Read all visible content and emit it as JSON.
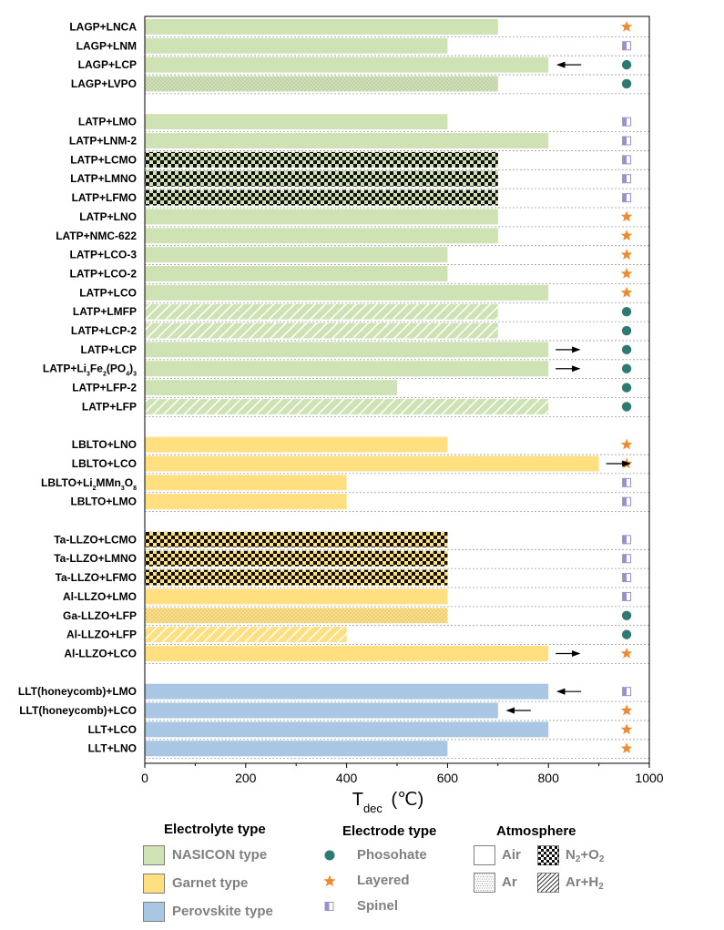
{
  "chart_data": {
    "type": "bar",
    "orientation": "horizontal",
    "xlabel_main": "T",
    "xlabel_sub": "dec",
    "xlabel_unit": "(℃)",
    "xlim": [
      0,
      1000
    ],
    "xticks": [
      "0",
      "200",
      "400",
      "600",
      "800",
      "1000"
    ],
    "groups": [
      {
        "bars": [
          {
            "label": "LAGP+LNCA",
            "value": 700,
            "electrolyte": "nasicon",
            "atmosphere": "air",
            "electrode": "layered",
            "arrow": null
          },
          {
            "label": "LAGP+LNM",
            "value": 600,
            "electrolyte": "nasicon",
            "atmosphere": "air",
            "electrode": "spinel",
            "arrow": null
          },
          {
            "label": "LAGP+LCP",
            "value": 800,
            "electrolyte": "nasicon",
            "atmosphere": "air",
            "electrode": "phosphate",
            "arrow": "left"
          },
          {
            "label": "LAGP+LVPO",
            "value": 700,
            "electrolyte": "nasicon",
            "atmosphere": "ar",
            "electrode": "phosphate",
            "arrow": null
          }
        ]
      },
      {
        "bars": [
          {
            "label": "LATP+LMO",
            "value": 600,
            "electrolyte": "nasicon",
            "atmosphere": "air",
            "electrode": "spinel",
            "arrow": null
          },
          {
            "label": "LATP+LNM-2",
            "value": 800,
            "electrolyte": "nasicon",
            "atmosphere": "air",
            "electrode": "spinel",
            "arrow": null
          },
          {
            "label": "LATP+LCMO",
            "value": 700,
            "electrolyte": "nasicon",
            "atmosphere": "n2o2",
            "electrode": "spinel",
            "arrow": null
          },
          {
            "label": "LATP+LMNO",
            "value": 700,
            "electrolyte": "nasicon",
            "atmosphere": "n2o2",
            "electrode": "spinel",
            "arrow": null
          },
          {
            "label": "LATP+LFMO",
            "value": 700,
            "electrolyte": "nasicon",
            "atmosphere": "n2o2",
            "electrode": "spinel",
            "arrow": null
          },
          {
            "label": "LATP+LNO",
            "value": 700,
            "electrolyte": "nasicon",
            "atmosphere": "air",
            "electrode": "layered",
            "arrow": null
          },
          {
            "label": "LATP+NMC-622",
            "value": 700,
            "electrolyte": "nasicon",
            "atmosphere": "air",
            "electrode": "layered",
            "arrow": null
          },
          {
            "label": "LATP+LCO-3",
            "value": 600,
            "electrolyte": "nasicon",
            "atmosphere": "air",
            "electrode": "layered",
            "arrow": null
          },
          {
            "label": "LATP+LCO-2",
            "value": 600,
            "electrolyte": "nasicon",
            "atmosphere": "air",
            "electrode": "layered",
            "arrow": null
          },
          {
            "label": "LATP+LCO",
            "value": 800,
            "electrolyte": "nasicon",
            "atmosphere": "air",
            "electrode": "layered",
            "arrow": null
          },
          {
            "label": "LATP+LMFP",
            "value": 700,
            "electrolyte": "nasicon",
            "atmosphere": "arh2",
            "electrode": "phosphate",
            "arrow": null
          },
          {
            "label": "LATP+LCP-2",
            "value": 700,
            "electrolyte": "nasicon",
            "atmosphere": "arh2",
            "electrode": "phosphate",
            "arrow": null
          },
          {
            "label": "LATP+LCP",
            "value": 800,
            "electrolyte": "nasicon",
            "atmosphere": "air",
            "electrode": "phosphate",
            "arrow": "right"
          },
          {
            "label": "LATP+Li3Fe2(PO4)3",
            "label_parts": [
              [
                "LATP+Li",
                ""
              ],
              [
                "3",
                "sub"
              ],
              [
                "Fe",
                ""
              ],
              [
                "2",
                "sub"
              ],
              [
                "(PO",
                ""
              ],
              [
                "4",
                "sub"
              ],
              [
                ")",
                ""
              ],
              [
                "3",
                "sub"
              ]
            ],
            "value": 800,
            "electrolyte": "nasicon",
            "atmosphere": "air",
            "electrode": "phosphate",
            "arrow": "right"
          },
          {
            "label": "LATP+LFP-2",
            "value": 500,
            "electrolyte": "nasicon",
            "atmosphere": "air",
            "electrode": "phosphate",
            "arrow": null
          },
          {
            "label": "LATP+LFP",
            "value": 800,
            "electrolyte": "nasicon",
            "atmosphere": "arh2",
            "electrode": "phosphate",
            "arrow": null
          }
        ]
      },
      {
        "bars": [
          {
            "label": "LBLTO+LNO",
            "value": 600,
            "electrolyte": "garnet",
            "atmosphere": "air",
            "electrode": "layered",
            "arrow": null
          },
          {
            "label": "LBLTO+LCO",
            "value": 900,
            "electrolyte": "garnet",
            "atmosphere": "air",
            "electrode": "layered",
            "arrow": "right"
          },
          {
            "label": "LBLTO+Li2MMn3O8",
            "label_parts": [
              [
                "LBLTO+Li",
                ""
              ],
              [
                "2",
                "sub"
              ],
              [
                "MMn",
                ""
              ],
              [
                "3",
                "sub"
              ],
              [
                "O",
                ""
              ],
              [
                "8",
                "sub"
              ]
            ],
            "value": 400,
            "electrolyte": "garnet",
            "atmosphere": "air",
            "electrode": "spinel",
            "arrow": null
          },
          {
            "label": "LBLTO+LMO",
            "value": 400,
            "electrolyte": "garnet",
            "atmosphere": "air",
            "electrode": "spinel",
            "arrow": null
          }
        ]
      },
      {
        "bars": [
          {
            "label": "Ta-LLZO+LCMO",
            "value": 600,
            "electrolyte": "garnet",
            "atmosphere": "n2o2",
            "electrode": "spinel",
            "arrow": null
          },
          {
            "label": "Ta-LLZO+LMNO",
            "value": 600,
            "electrolyte": "garnet",
            "atmosphere": "n2o2",
            "electrode": "spinel",
            "arrow": null
          },
          {
            "label": "Ta-LLZO+LFMO",
            "value": 600,
            "electrolyte": "garnet",
            "atmosphere": "n2o2",
            "electrode": "spinel",
            "arrow": null
          },
          {
            "label": "Al-LLZO+LMO",
            "value": 600,
            "electrolyte": "garnet",
            "atmosphere": "air",
            "electrode": "spinel",
            "arrow": null
          },
          {
            "label": "Ga-LLZO+LFP",
            "value": 600,
            "electrolyte": "garnet",
            "atmosphere": "ar",
            "electrode": "phosphate",
            "arrow": null
          },
          {
            "label": "Al-LLZO+LFP",
            "value": 400,
            "electrolyte": "garnet",
            "atmosphere": "arh2",
            "electrode": "phosphate",
            "arrow": null
          },
          {
            "label": "Al-LLZO+LCO",
            "value": 800,
            "electrolyte": "garnet",
            "atmosphere": "air",
            "electrode": "layered",
            "arrow": "right"
          }
        ]
      },
      {
        "bars": [
          {
            "label": "LLT(honeycomb)+LMO",
            "value": 800,
            "electrolyte": "perovskite",
            "atmosphere": "air",
            "electrode": "spinel",
            "arrow": "left"
          },
          {
            "label": "LLT(honeycomb)+LCO",
            "value": 700,
            "electrolyte": "perovskite",
            "atmosphere": "air",
            "electrode": "layered",
            "arrow": "left"
          },
          {
            "label": "LLT+LCO",
            "value": 800,
            "electrolyte": "perovskite",
            "atmosphere": "air",
            "electrode": "layered",
            "arrow": null
          },
          {
            "label": "LLT+LNO",
            "value": 600,
            "electrolyte": "perovskite",
            "atmosphere": "air",
            "electrode": "layered",
            "arrow": null
          }
        ]
      }
    ],
    "colors": {
      "nasicon": "#cfe2b4",
      "garnet": "#ffdf7f",
      "perovskite": "#a9c6e4",
      "phosphate": "#2e7a72",
      "layered": "#f08a2c",
      "spinel": "#9a90d0"
    }
  },
  "legend": {
    "electrolyte_title": "Electrolyte type",
    "electrolyte_items": [
      {
        "key": "nasicon",
        "label": "NASICON type"
      },
      {
        "key": "garnet",
        "label": "Garnet type"
      },
      {
        "key": "perovskite",
        "label": "Perovskite type"
      }
    ],
    "electrode_title": "Electrode type",
    "electrode_items": [
      {
        "key": "phosphate",
        "label": "Phosohate",
        "icon": "circle-icon"
      },
      {
        "key": "layered",
        "label": "Layered",
        "icon": "star-icon"
      },
      {
        "key": "spinel",
        "label": "Spinel",
        "icon": "half-square-icon"
      }
    ],
    "atmosphere_title": "Atmosphere",
    "atmosphere_items": [
      {
        "key": "air",
        "label": "Air"
      },
      {
        "key": "n2o2",
        "label": "N2+O2",
        "parts": [
          [
            "N",
            ""
          ],
          [
            "2",
            "sub"
          ],
          [
            "+O",
            ""
          ],
          [
            "2",
            "sub"
          ]
        ]
      },
      {
        "key": "ar",
        "label": "Ar"
      },
      {
        "key": "arh2",
        "label": "Ar+H2",
        "parts": [
          [
            "Ar+H",
            ""
          ],
          [
            "2",
            "sub"
          ]
        ]
      }
    ]
  }
}
